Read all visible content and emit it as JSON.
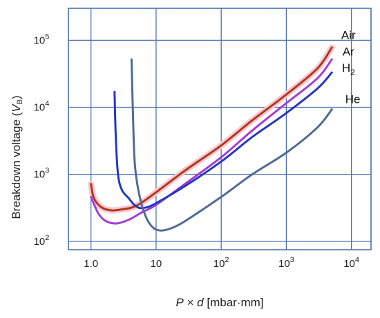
{
  "chart_data": {
    "type": "line",
    "xscale": "log",
    "yscale": "log",
    "xlabel": {
      "pre": "P",
      "mid": " × ",
      "var": "d",
      "post": " [mbar·mm]"
    },
    "ylabel": {
      "pre": "Breakdown voltage (",
      "var": "V",
      "sub": "B",
      "post": ")"
    },
    "xlim": [
      0.45,
      20000
    ],
    "ylim": [
      75,
      300000
    ],
    "grid": true,
    "legend": "direct labels at line ends",
    "x_ticks": [
      {
        "value": 1.0,
        "base": "1.0",
        "exp": ""
      },
      {
        "value": 10,
        "base": "10",
        "exp": ""
      },
      {
        "value": 100,
        "base": "10",
        "exp": "2"
      },
      {
        "value": 1000,
        "base": "10",
        "exp": "3"
      },
      {
        "value": 10000,
        "base": "10",
        "exp": "4"
      }
    ],
    "y_ticks": [
      {
        "value": 100,
        "base": "10",
        "exp": "2"
      },
      {
        "value": 1000,
        "base": "10",
        "exp": "3"
      },
      {
        "value": 10000,
        "base": "10",
        "exp": "4"
      },
      {
        "value": 100000,
        "base": "10",
        "exp": "5"
      }
    ],
    "series": [
      {
        "name": "Air",
        "color": "#b5361c",
        "halo": "#f6c9d2",
        "points": [
          [
            1.0,
            720
          ],
          [
            1.1,
            450
          ],
          [
            1.4,
            330
          ],
          [
            2.0,
            290
          ],
          [
            3.0,
            300
          ],
          [
            5.0,
            340
          ],
          [
            10,
            540
          ],
          [
            30,
            1200
          ],
          [
            100,
            2700
          ],
          [
            300,
            6400
          ],
          [
            1000,
            15500
          ],
          [
            3000,
            38000
          ],
          [
            5000,
            78000
          ]
        ]
      },
      {
        "name": "Ar",
        "color": "#a43cd6",
        "points": [
          [
            1.0,
            460
          ],
          [
            1.3,
            260
          ],
          [
            1.7,
            200
          ],
          [
            2.5,
            185
          ],
          [
            4.0,
            215
          ],
          [
            6.0,
            270
          ],
          [
            10,
            350
          ],
          [
            30,
            760
          ],
          [
            100,
            1800
          ],
          [
            300,
            4500
          ],
          [
            1000,
            11500
          ],
          [
            3000,
            27000
          ],
          [
            5000,
            52000
          ]
        ]
      },
      {
        "name": "H₂",
        "color": "#2437c4",
        "points": [
          [
            2.3,
            17000
          ],
          [
            2.4,
            3800
          ],
          [
            2.6,
            1000
          ],
          [
            3.0,
            580
          ],
          [
            3.8,
            440
          ],
          [
            4.5,
            360
          ],
          [
            5.5,
            315
          ],
          [
            7.0,
            320
          ],
          [
            10,
            370
          ],
          [
            30,
            700
          ],
          [
            100,
            1550
          ],
          [
            300,
            3600
          ],
          [
            1000,
            8200
          ],
          [
            3000,
            19000
          ],
          [
            5000,
            33000
          ]
        ]
      },
      {
        "name": "He",
        "color": "#4f6a95",
        "points": [
          [
            4.2,
            52000
          ],
          [
            4.4,
            9000
          ],
          [
            4.7,
            1500
          ],
          [
            5.5,
            500
          ],
          [
            7.0,
            230
          ],
          [
            9.0,
            160
          ],
          [
            12,
            145
          ],
          [
            18,
            160
          ],
          [
            30,
            210
          ],
          [
            100,
            460
          ],
          [
            300,
            1000
          ],
          [
            1000,
            2100
          ],
          [
            3000,
            5000
          ],
          [
            5000,
            9300
          ]
        ]
      }
    ],
    "labels": [
      {
        "series": "Air",
        "text": "Air",
        "x": 9000,
        "y": 104000
      },
      {
        "series": "Ar",
        "text": "Ar",
        "x": 9000,
        "y": 59000
      },
      {
        "series": "H₂",
        "text": "H",
        "sub": "2",
        "x": 9000,
        "y": 34000
      },
      {
        "series": "He",
        "text": "He",
        "x": 10500,
        "y": 11500
      }
    ]
  }
}
